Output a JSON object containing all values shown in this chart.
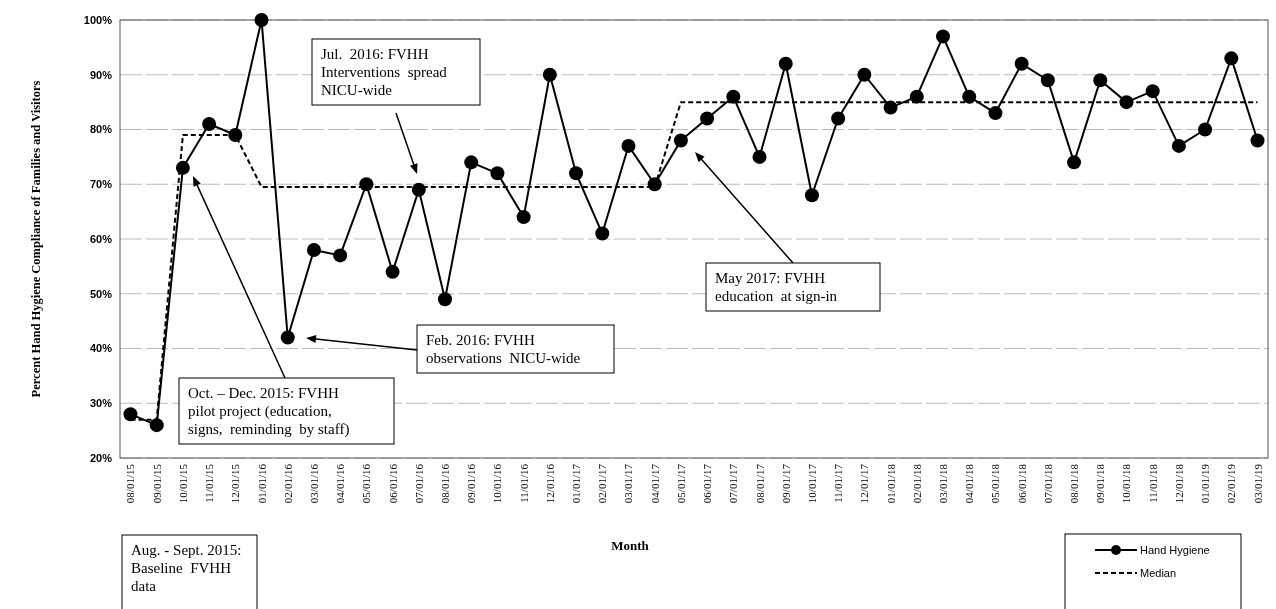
{
  "chart_data": {
    "type": "line",
    "xlabel": "Month",
    "ylabel": "Percent Hand Hygiene Compliance of Families and Visitors",
    "categories": [
      "08/01/15",
      "09/01/15",
      "10/01/15",
      "11/01/15",
      "12/01/15",
      "01/01/16",
      "02/01/16",
      "03/01/16",
      "04/01/16",
      "05/01/16",
      "06/01/16",
      "07/01/16",
      "08/01/16",
      "09/01/16",
      "10/01/16",
      "11/01/16",
      "12/01/16",
      "01/01/17",
      "02/01/17",
      "03/01/17",
      "04/01/17",
      "05/01/17",
      "06/01/17",
      "07/01/17",
      "08/01/17",
      "09/01/17",
      "10/01/17",
      "11/01/17",
      "12/01/17",
      "01/01/18",
      "02/01/18",
      "03/01/18",
      "04/01/18",
      "05/01/18",
      "06/01/18",
      "07/01/18",
      "08/01/18",
      "09/01/18",
      "10/01/18",
      "11/01/18",
      "12/01/18",
      "01/01/19",
      "02/01/19",
      "03/01/19"
    ],
    "series": [
      {
        "name": "Hand Hygiene",
        "color": "#000000",
        "marker": "circle",
        "line_style": "solid",
        "values": [
          28,
          26,
          73,
          81,
          79,
          100,
          42,
          58,
          57,
          70,
          54,
          69,
          49,
          74,
          72,
          64,
          90,
          72,
          61,
          77,
          70,
          78,
          82,
          86,
          75,
          92,
          68,
          82,
          90,
          84,
          86,
          97,
          86,
          83,
          92,
          89,
          74,
          89,
          85,
          87,
          77,
          80,
          93,
          78
        ]
      },
      {
        "name": "Median",
        "color": "#000000",
        "marker": "none",
        "line_style": "dashed",
        "values": [
          27,
          27,
          79,
          79,
          79,
          69.5,
          69.5,
          69.5,
          69.5,
          69.5,
          69.5,
          69.5,
          69.5,
          69.5,
          69.5,
          69.5,
          69.5,
          69.5,
          69.5,
          69.5,
          69.5,
          85,
          85,
          85,
          85,
          85,
          85,
          85,
          85,
          85,
          85,
          85,
          85,
          85,
          85,
          85,
          85,
          85,
          85,
          85,
          85,
          85,
          85,
          85
        ]
      }
    ],
    "ylim": [
      20,
      100
    ],
    "yticks": [
      {
        "value": 20,
        "label": "20%"
      },
      {
        "value": 30,
        "label": "30%"
      },
      {
        "value": 40,
        "label": "40%"
      },
      {
        "value": 50,
        "label": "50%"
      },
      {
        "value": 60,
        "label": "60%"
      },
      {
        "value": 70,
        "label": "70%"
      },
      {
        "value": 80,
        "label": "80%"
      },
      {
        "value": 90,
        "label": "90%"
      },
      {
        "value": 100,
        "label": "100%"
      }
    ],
    "grid": "y",
    "legend": "bottom right",
    "annotations": [
      "Oct. – Dec. 2015: FVHH\npilot project (education,\nsigns,  reminding  by staff)",
      "Feb. 2016: FVHH\nobservations  NICU-wide",
      "Jul.  2016: FVHH\nInterventions  spread\nNICU-wide",
      "May 2017: FVHH\neducation  at sign-in",
      "Aug. - Sept. 2015:\nBaseline  FVHH\ndata"
    ]
  }
}
